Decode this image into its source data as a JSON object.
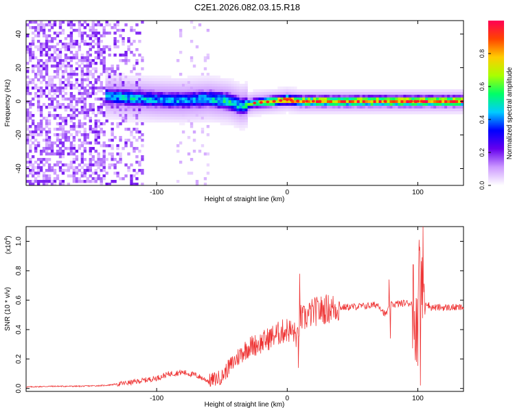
{
  "title": "C2E1.2026.082.03.15.R18",
  "chart_data": [
    {
      "type": "heatmap",
      "title": "C2E1.2026.082.03.15.R18",
      "xlabel": "Height of straight line (km)",
      "ylabel": "Frequency (Hz)",
      "xlim": [
        -200,
        135
      ],
      "ylim": [
        -50,
        48
      ],
      "xticks": [
        -100,
        0,
        100
      ],
      "xtick_labels": [
        "-100",
        "0",
        "100"
      ],
      "yticks": [
        -40,
        -20,
        0,
        20,
        40
      ],
      "ytick_labels": [
        "-40",
        "-20",
        "0",
        "20",
        "40"
      ],
      "ridge": {
        "height_km": [
          -135,
          -120,
          -100,
          -80,
          -60,
          -45,
          -35,
          -25,
          -10,
          0,
          10,
          50,
          100,
          135
        ],
        "center_freq_hz": [
          3,
          2,
          1,
          0.5,
          1.5,
          0,
          -3,
          -1,
          0,
          1,
          0,
          0,
          0,
          0
        ],
        "peak_amplitude": [
          0.45,
          0.5,
          0.45,
          0.45,
          0.5,
          0.55,
          0.5,
          0.65,
          0.85,
          0.95,
          0.9,
          0.9,
          0.95,
          0.95
        ]
      },
      "noise_region_km": [
        -200,
        -110
      ],
      "colorbar": {
        "label": "Normalized spectral amplitude",
        "range": [
          0,
          1
        ],
        "ticks": [
          0.0,
          0.2,
          0.4,
          0.6,
          0.8
        ],
        "tick_labels": [
          "0.0",
          "0.2",
          "0.4",
          "0.6",
          "0.8"
        ],
        "colors": [
          "#ffffff",
          "#cc99ff",
          "#6600ee",
          "#0000ff",
          "#00ccff",
          "#00ff66",
          "#aaff00",
          "#ffcc00",
          "#ff4400",
          "#ff0055"
        ]
      }
    },
    {
      "type": "line",
      "xlabel": "Height of straight line (km)",
      "ylabel": "SNR (10 * v/v)",
      "scale_label": "(x10",
      "scale_exp": "4",
      "scale_close": ")",
      "xlim": [
        -200,
        135
      ],
      "ylim": [
        -0.02,
        1.1
      ],
      "xticks": [
        -100,
        0,
        100
      ],
      "xtick_labels": [
        "-100",
        "0",
        "100"
      ],
      "yticks": [
        0.0,
        0.2,
        0.4,
        0.6,
        0.8,
        1.0
      ],
      "ytick_labels": [
        "0.0",
        "0.2",
        "0.4",
        "0.6",
        "0.8",
        "1.0"
      ],
      "series": [
        {
          "name": "SNR",
          "color": "#ee3333",
          "x": [
            -200,
            -180,
            -160,
            -140,
            -130,
            -120,
            -100,
            -90,
            -80,
            -70,
            -60,
            -50,
            -45,
            -40,
            -35,
            -30,
            -20,
            -10,
            0,
            5,
            8,
            10,
            12,
            20,
            30,
            40,
            60,
            70,
            75,
            80,
            90,
            95,
            100,
            102,
            105,
            110,
            120,
            135
          ],
          "y": [
            0.01,
            0.015,
            0.015,
            0.02,
            0.03,
            0.04,
            0.07,
            0.1,
            0.11,
            0.09,
            0.05,
            0.08,
            0.14,
            0.19,
            0.24,
            0.28,
            0.31,
            0.36,
            0.4,
            0.38,
            0.34,
            0.48,
            0.47,
            0.52,
            0.54,
            0.55,
            0.56,
            0.57,
            0.5,
            0.57,
            0.58,
            0.58,
            0.5,
            0.8,
            0.6,
            0.55,
            0.55,
            0.55
          ]
        }
      ],
      "spikes": [
        {
          "x": 9.5,
          "y": 0.78
        },
        {
          "x": 8.5,
          "y": 0.14
        },
        {
          "x": 78,
          "y": 0.74
        },
        {
          "x": 79,
          "y": 0.34
        },
        {
          "x": 101,
          "y": 1.01
        },
        {
          "x": 104,
          "y": 1.1
        },
        {
          "x": 102,
          "y": 0.02
        },
        {
          "x": 99,
          "y": 0.18
        }
      ]
    }
  ]
}
